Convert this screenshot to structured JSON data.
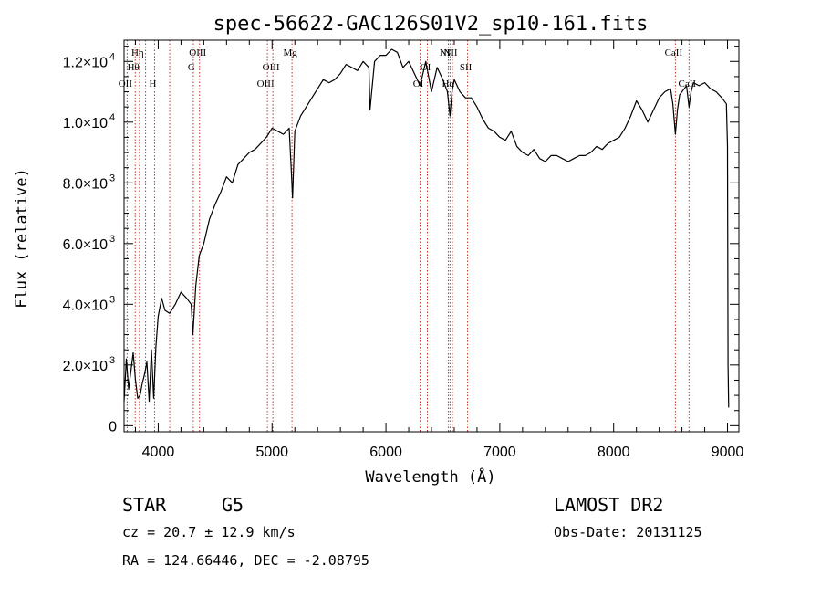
{
  "chart_data": {
    "type": "line",
    "title": "spec-56622-GAC126S01V2_sp10-161.fits",
    "xlabel": "Wavelength (Å)",
    "ylabel": "Flux (relative)",
    "xlim": [
      3700,
      9100
    ],
    "ylim": [
      -200,
      12700
    ],
    "x_ticks": [
      {
        "value": 4000,
        "label": "4000"
      },
      {
        "value": 5000,
        "label": "5000"
      },
      {
        "value": 6000,
        "label": "6000"
      },
      {
        "value": 7000,
        "label": "7000"
      },
      {
        "value": 8000,
        "label": "8000"
      },
      {
        "value": 9000,
        "label": "9000"
      }
    ],
    "y_ticks": [
      {
        "value": 0,
        "mant": "0",
        "exp": ""
      },
      {
        "value": 2000,
        "mant": "2.0×10",
        "exp": "3"
      },
      {
        "value": 4000,
        "mant": "4.0×10",
        "exp": "3"
      },
      {
        "value": 6000,
        "mant": "6.0×10",
        "exp": "3"
      },
      {
        "value": 8000,
        "mant": "8.0×10",
        "exp": "3"
      },
      {
        "value": 10000,
        "mant": "1.0×10",
        "exp": "4"
      },
      {
        "value": 12000,
        "mant": "1.2×10",
        "exp": "4"
      }
    ],
    "series": [
      {
        "color": "#000000",
        "x": [
          3700,
          3720,
          3740,
          3760,
          3780,
          3800,
          3820,
          3840,
          3860,
          3880,
          3900,
          3920,
          3940,
          3960,
          3980,
          4000,
          4030,
          4060,
          4100,
          4150,
          4200,
          4250,
          4290,
          4305,
          4330,
          4360,
          4400,
          4450,
          4500,
          4550,
          4600,
          4650,
          4700,
          4750,
          4800,
          4850,
          4900,
          4950,
          5000,
          5050,
          5100,
          5150,
          5170,
          5180,
          5200,
          5250,
          5300,
          5350,
          5400,
          5450,
          5500,
          5550,
          5600,
          5650,
          5700,
          5750,
          5800,
          5850,
          5860,
          5900,
          5950,
          6000,
          6050,
          6100,
          6150,
          6200,
          6250,
          6300,
          6350,
          6400,
          6450,
          6500,
          6540,
          6563,
          6580,
          6600,
          6650,
          6700,
          6750,
          6800,
          6850,
          6900,
          6950,
          7000,
          7050,
          7100,
          7150,
          7200,
          7250,
          7300,
          7350,
          7400,
          7450,
          7500,
          7550,
          7600,
          7650,
          7700,
          7750,
          7800,
          7850,
          7900,
          7950,
          8000,
          8050,
          8100,
          8150,
          8200,
          8250,
          8300,
          8350,
          8400,
          8450,
          8500,
          8520,
          8542,
          8560,
          8580,
          8600,
          8620,
          8640,
          8662,
          8680,
          8700,
          8750,
          8800,
          8850,
          8900,
          8950,
          8990,
          9000,
          9005,
          9010
        ],
        "y": [
          800,
          2200,
          1200,
          1800,
          2400,
          1500,
          900,
          1000,
          1400,
          1700,
          2100,
          800,
          2500,
          900,
          2600,
          3600,
          4200,
          3800,
          3700,
          4000,
          4400,
          4200,
          4000,
          3000,
          4600,
          5600,
          6000,
          6800,
          7300,
          7700,
          8200,
          8000,
          8600,
          8800,
          9000,
          9100,
          9300,
          9500,
          9800,
          9700,
          9600,
          9800,
          8300,
          7500,
          9700,
          10200,
          10500,
          10800,
          11100,
          11400,
          11300,
          11400,
          11600,
          11900,
          11800,
          11700,
          12000,
          11800,
          10400,
          12000,
          12200,
          12200,
          12400,
          12300,
          11800,
          12000,
          11600,
          11200,
          12000,
          11000,
          11800,
          11400,
          11000,
          10200,
          11000,
          11400,
          11000,
          10800,
          10800,
          10500,
          10100,
          9800,
          9700,
          9500,
          9400,
          9700,
          9200,
          9000,
          8900,
          9100,
          8800,
          8700,
          8900,
          8900,
          8800,
          8700,
          8800,
          8900,
          8900,
          9000,
          9200,
          9100,
          9300,
          9400,
          9500,
          9800,
          10200,
          10700,
          10400,
          10000,
          10400,
          10800,
          11000,
          11100,
          10600,
          9600,
          10400,
          10900,
          11000,
          11100,
          11200,
          10500,
          11000,
          11300,
          11200,
          11300,
          11100,
          11000,
          10800,
          10600,
          9200,
          2000,
          600
        ]
      }
    ],
    "line_markers": [
      {
        "label": "OII",
        "x": 3727,
        "row": 3
      },
      {
        "label": "Hθ",
        "x": 3798,
        "row": 2
      },
      {
        "label": "Hη",
        "x": 3835,
        "row": 1
      },
      {
        "label": "H",
        "x": 3968,
        "row": 3
      },
      {
        "label": "OIII",
        "x": 4363,
        "row": 1
      },
      {
        "label": "G",
        "x": 4308,
        "row": 2
      },
      {
        "label": "OIII",
        "x": 4959,
        "row": 3
      },
      {
        "label": "OIII",
        "x": 5007,
        "row": 2
      },
      {
        "label": "Mg",
        "x": 5175,
        "row": 1
      },
      {
        "label": "OI",
        "x": 6300,
        "row": 3
      },
      {
        "label": "OI",
        "x": 6364,
        "row": 2
      },
      {
        "label": "NII",
        "x": 6548,
        "row": 1
      },
      {
        "label": "Hα",
        "x": 6563,
        "row": 3
      },
      {
        "label": "NII",
        "x": 6584,
        "row": 1
      },
      {
        "label": "SII",
        "x": 6717,
        "row": 2
      },
      {
        "label": "CaII",
        "x": 8542,
        "row": 1
      },
      {
        "label": "CaII",
        "x": 8662,
        "row": 3
      },
      {
        "label": "",
        "x": 3889,
        "row": 0
      },
      {
        "label": "",
        "x": 4101,
        "row": 0
      }
    ]
  },
  "info": {
    "object_class": "STAR",
    "subclass": "G5",
    "survey": "LAMOST DR2",
    "redshift": "cz = 20.7 ± 12.9 km/s",
    "obs_date": "Obs-Date: 20131125",
    "coords": "RA = 124.66446, DEC =  -2.08795"
  }
}
